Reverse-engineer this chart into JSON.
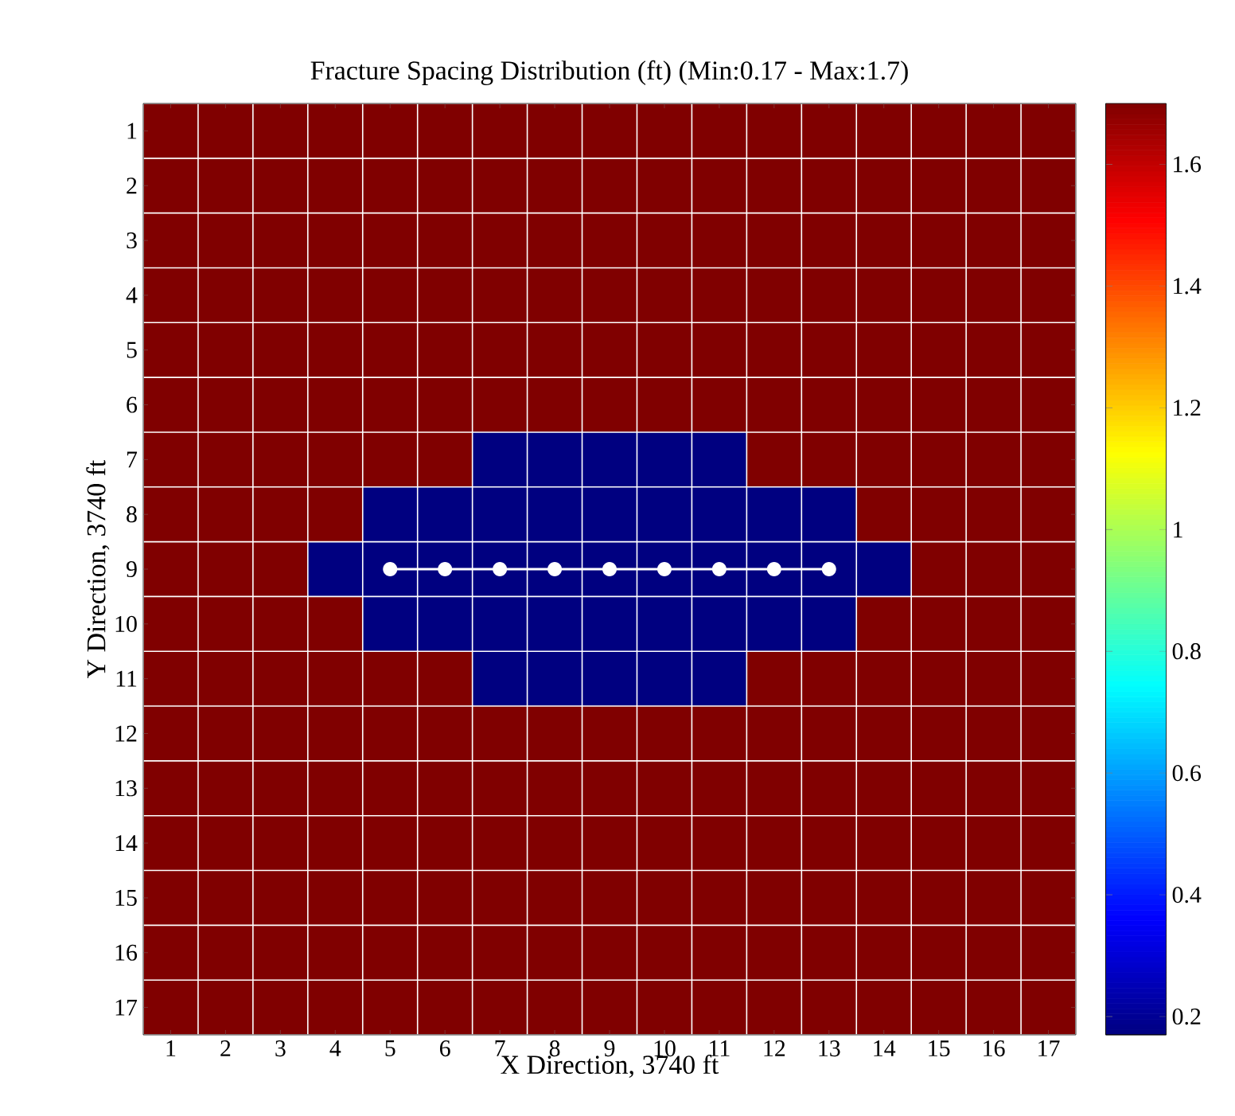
{
  "chart_data": {
    "type": "heatmap",
    "title": "Fracture Spacing Distribution (ft) (Min:0.17 - Max:1.7)",
    "xlabel": "X Direction, 3740 ft",
    "ylabel": "Y Direction, 3740 ft",
    "categories": [
      "1",
      "2",
      "3",
      "4",
      "5",
      "6",
      "7",
      "8",
      "9",
      "10",
      "11",
      "12",
      "13",
      "14",
      "15",
      "16",
      "17"
    ],
    "y_categories": [
      "1",
      "2",
      "3",
      "4",
      "5",
      "6",
      "7",
      "8",
      "9",
      "10",
      "11",
      "12",
      "13",
      "14",
      "15",
      "16",
      "17"
    ],
    "cells": [
      [
        1.7,
        1.7,
        1.7,
        1.7,
        1.7,
        1.7,
        1.7,
        1.7,
        1.7,
        1.7,
        1.7,
        1.7,
        1.7,
        1.7,
        1.7,
        1.7,
        1.7
      ],
      [
        1.7,
        1.7,
        1.7,
        1.7,
        1.7,
        1.7,
        1.7,
        1.7,
        1.7,
        1.7,
        1.7,
        1.7,
        1.7,
        1.7,
        1.7,
        1.7,
        1.7
      ],
      [
        1.7,
        1.7,
        1.7,
        1.7,
        1.7,
        1.7,
        1.7,
        1.7,
        1.7,
        1.7,
        1.7,
        1.7,
        1.7,
        1.7,
        1.7,
        1.7,
        1.7
      ],
      [
        1.7,
        1.7,
        1.7,
        1.7,
        1.7,
        1.7,
        1.7,
        1.7,
        1.7,
        1.7,
        1.7,
        1.7,
        1.7,
        1.7,
        1.7,
        1.7,
        1.7
      ],
      [
        1.7,
        1.7,
        1.7,
        1.7,
        1.7,
        1.7,
        1.7,
        1.7,
        1.7,
        1.7,
        1.7,
        1.7,
        1.7,
        1.7,
        1.7,
        1.7,
        1.7
      ],
      [
        1.7,
        1.7,
        1.7,
        1.7,
        1.7,
        1.7,
        1.7,
        1.7,
        1.7,
        1.7,
        1.7,
        1.7,
        1.7,
        1.7,
        1.7,
        1.7,
        1.7
      ],
      [
        1.7,
        1.7,
        1.7,
        1.7,
        1.7,
        1.7,
        0.17,
        0.17,
        0.17,
        0.17,
        0.17,
        1.7,
        1.7,
        1.7,
        1.7,
        1.7,
        1.7
      ],
      [
        1.7,
        1.7,
        1.7,
        1.7,
        0.17,
        0.17,
        0.17,
        0.17,
        0.17,
        0.17,
        0.17,
        0.17,
        0.17,
        1.7,
        1.7,
        1.7,
        1.7
      ],
      [
        1.7,
        1.7,
        1.7,
        0.17,
        0.17,
        0.17,
        0.17,
        0.17,
        0.17,
        0.17,
        0.17,
        0.17,
        0.17,
        0.17,
        1.7,
        1.7,
        1.7
      ],
      [
        1.7,
        1.7,
        1.7,
        1.7,
        0.17,
        0.17,
        0.17,
        0.17,
        0.17,
        0.17,
        0.17,
        0.17,
        0.17,
        1.7,
        1.7,
        1.7,
        1.7
      ],
      [
        1.7,
        1.7,
        1.7,
        1.7,
        1.7,
        1.7,
        0.17,
        0.17,
        0.17,
        0.17,
        0.17,
        1.7,
        1.7,
        1.7,
        1.7,
        1.7,
        1.7
      ],
      [
        1.7,
        1.7,
        1.7,
        1.7,
        1.7,
        1.7,
        1.7,
        1.7,
        1.7,
        1.7,
        1.7,
        1.7,
        1.7,
        1.7,
        1.7,
        1.7,
        1.7
      ],
      [
        1.7,
        1.7,
        1.7,
        1.7,
        1.7,
        1.7,
        1.7,
        1.7,
        1.7,
        1.7,
        1.7,
        1.7,
        1.7,
        1.7,
        1.7,
        1.7,
        1.7
      ],
      [
        1.7,
        1.7,
        1.7,
        1.7,
        1.7,
        1.7,
        1.7,
        1.7,
        1.7,
        1.7,
        1.7,
        1.7,
        1.7,
        1.7,
        1.7,
        1.7,
        1.7
      ],
      [
        1.7,
        1.7,
        1.7,
        1.7,
        1.7,
        1.7,
        1.7,
        1.7,
        1.7,
        1.7,
        1.7,
        1.7,
        1.7,
        1.7,
        1.7,
        1.7,
        1.7
      ],
      [
        1.7,
        1.7,
        1.7,
        1.7,
        1.7,
        1.7,
        1.7,
        1.7,
        1.7,
        1.7,
        1.7,
        1.7,
        1.7,
        1.7,
        1.7,
        1.7,
        1.7
      ],
      [
        1.7,
        1.7,
        1.7,
        1.7,
        1.7,
        1.7,
        1.7,
        1.7,
        1.7,
        1.7,
        1.7,
        1.7,
        1.7,
        1.7,
        1.7,
        1.7,
        1.7
      ]
    ],
    "clim": [
      0.17,
      1.7
    ],
    "cticks": [
      0.2,
      0.4,
      0.6,
      0.8,
      1,
      1.2,
      1.4,
      1.6
    ],
    "grid": true
  }
}
